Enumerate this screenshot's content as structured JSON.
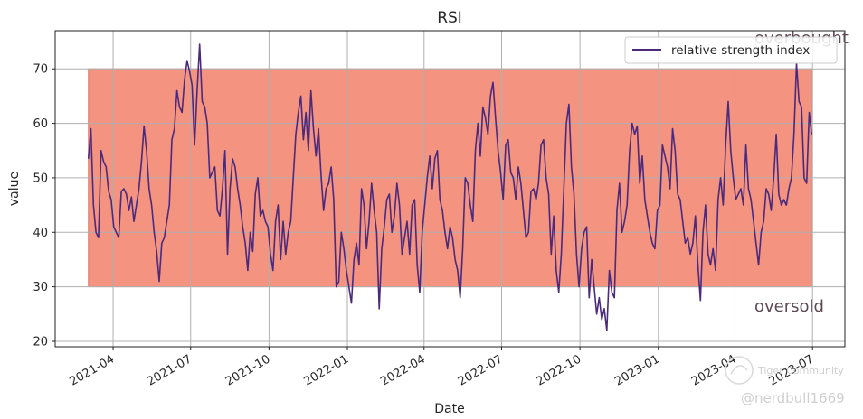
{
  "chart_data": {
    "type": "line",
    "title": "RSI",
    "xlabel": "Date",
    "ylabel": "value",
    "ylim": [
      19,
      77
    ],
    "xlim": [
      "2021-01-23",
      "2023-08-08"
    ],
    "yticks": [
      20,
      30,
      40,
      50,
      60,
      70
    ],
    "xticks": [
      "2021-04",
      "2021-07",
      "2021-10",
      "2022-01",
      "2022-04",
      "2022-07",
      "2022-10",
      "2023-01",
      "2023-04",
      "2023-07"
    ],
    "grid": true,
    "legend": {
      "location": "top-right",
      "entries": [
        "relative strength index"
      ]
    },
    "band": {
      "lower": 30,
      "upper": 70,
      "start": "2021-03-03",
      "end": "2023-06-30",
      "color": "#f39380"
    },
    "annotations": {
      "upper": "overbought",
      "lower": "oversold"
    },
    "series": [
      {
        "name": "relative strength index",
        "color": "#4b2a7d",
        "start_date": "2021-03-03",
        "end_date": "2023-06-30",
        "values": [
          53.5,
          59.0,
          45.0,
          40.0,
          39.0,
          55.0,
          53.0,
          52.0,
          47.5,
          46.0,
          41.0,
          40.0,
          39.0,
          47.5,
          48.0,
          47.0,
          44.0,
          46.5,
          42.0,
          45.0,
          48.0,
          53.0,
          59.5,
          55.0,
          48.0,
          45.0,
          40.0,
          36.5,
          31.0,
          38.0,
          39.0,
          42.0,
          45.0,
          57.0,
          59.0,
          66.0,
          63.0,
          62.0,
          68.0,
          71.5,
          69.5,
          67.0,
          56.0,
          66.0,
          74.5,
          64.0,
          63.0,
          60.0,
          50.0,
          51.0,
          52.0,
          44.0,
          43.0,
          48.0,
          55.0,
          36.0,
          48.0,
          53.5,
          52.0,
          48.0,
          45.0,
          41.0,
          38.0,
          33.0,
          40.0,
          36.5,
          47.0,
          50.0,
          43.0,
          44.0,
          42.0,
          41.0,
          36.0,
          33.0,
          42.0,
          45.0,
          35.0,
          42.0,
          36.0,
          40.0,
          42.0,
          50.0,
          58.0,
          62.0,
          65.0,
          57.0,
          62.0,
          55.0,
          66.0,
          59.0,
          54.0,
          59.0,
          50.5,
          44.0,
          48.0,
          49.0,
          52.0,
          46.0,
          30.0,
          31.0,
          40.0,
          37.0,
          33.0,
          30.0,
          27.0,
          35.0,
          38.0,
          34.0,
          48.0,
          45.0,
          37.0,
          42.0,
          49.0,
          44.0,
          40.0,
          26.0,
          37.0,
          41.0,
          46.0,
          47.0,
          40.0,
          43.0,
          49.0,
          45.0,
          36.0,
          39.0,
          42.0,
          36.0,
          45.0,
          46.0,
          34.0,
          29.0,
          40.0,
          45.0,
          50.0,
          54.0,
          48.0,
          53.5,
          55.0,
          46.0,
          44.0,
          40.0,
          37.0,
          41.0,
          39.0,
          35.0,
          33.0,
          28.0,
          37.0,
          50.0,
          49.0,
          45.0,
          42.0,
          55.0,
          60.0,
          54.0,
          63.0,
          61.0,
          58.0,
          65.0,
          67.5,
          61.0,
          55.0,
          51.0,
          46.0,
          56.0,
          57.0,
          51.0,
          50.0,
          46.0,
          52.0,
          49.0,
          44.0,
          39.0,
          40.0,
          47.5,
          48.0,
          46.0,
          49.0,
          56.0,
          57.0,
          50.0,
          47.0,
          36.0,
          43.0,
          33.0,
          29.0,
          36.0,
          48.0,
          60.0,
          63.5,
          52.0,
          47.0,
          36.0,
          30.0,
          37.0,
          40.0,
          41.0,
          28.0,
          35.0,
          30.0,
          25.0,
          28.0,
          24.0,
          26.0,
          22.0,
          33.0,
          29.0,
          28.0,
          44.0,
          49.0,
          40.0,
          42.0,
          45.0,
          55.0,
          60.0,
          58.0,
          59.5,
          49.0,
          54.0,
          46.0,
          43.0,
          40.0,
          38.0,
          37.0,
          44.0,
          45.0,
          56.0,
          54.0,
          52.0,
          48.0,
          59.0,
          55.0,
          47.0,
          46.0,
          42.0,
          38.0,
          39.0,
          36.0,
          38.0,
          43.0,
          34.0,
          27.5,
          40.0,
          45.0,
          36.0,
          34.0,
          37.0,
          33.0,
          46.0,
          50.0,
          45.0,
          56.0,
          64.0,
          55.0,
          50.0,
          46.0,
          47.0,
          48.0,
          45.0,
          56.0,
          48.0,
          46.0,
          42.0,
          38.0,
          34.0,
          40.0,
          42.0,
          48.0,
          47.0,
          44.0,
          50.0,
          58.0,
          47.0,
          45.0,
          46.0,
          45.0,
          48.0,
          50.0,
          58.0,
          71.0,
          64.0,
          63.0,
          50.0,
          49.0,
          62.0,
          58.0
        ]
      }
    ]
  },
  "watermark": {
    "brand": "Tiger Community",
    "handle": "@nerdbull1669"
  }
}
